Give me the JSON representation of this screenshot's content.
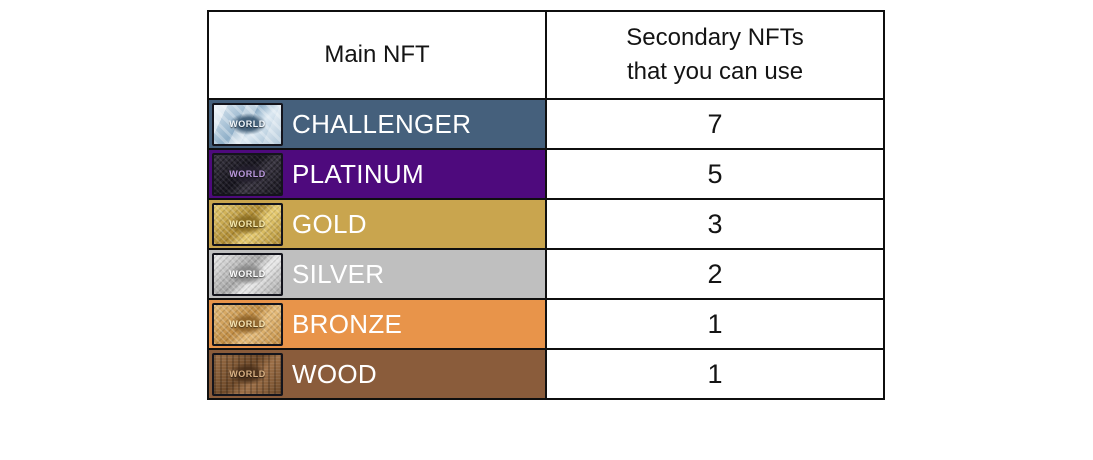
{
  "table": {
    "border_color": "#0f0f0f",
    "header": {
      "col1": "Main NFT",
      "col2_line1": "Secondary NFTs",
      "col2_line2": "that you can use"
    },
    "rows": [
      {
        "id": "challenger",
        "label": "CHALLENGER",
        "secondary_count": "7",
        "row_color": "#45607c",
        "label_color": "#ffffff",
        "card_text": "WORLD",
        "thumb_light": "#dde9f2",
        "thumb_dark": "#8fafc8",
        "burst_color": "#2e4d68",
        "card_text_color": "#f2f8fd"
      },
      {
        "id": "platinum",
        "label": "PLATINUM",
        "secondary_count": "5",
        "row_color": "#4e0a7d",
        "label_color": "#ffffff",
        "card_text": "WORLD",
        "thumb_light": "#3c3844",
        "thumb_dark": "#181620",
        "burst_color": "#241f2e",
        "card_text_color": "#bb99dd"
      },
      {
        "id": "gold",
        "label": "GOLD",
        "secondary_count": "3",
        "row_color": "#c9a54e",
        "label_color": "#ffffff",
        "card_text": "WORLD",
        "thumb_light": "#e9ce74",
        "thumb_dark": "#ad8a32",
        "burst_color": "#86691f",
        "card_text_color": "#f7e9ab"
      },
      {
        "id": "silver",
        "label": "SILVER",
        "secondary_count": "2",
        "row_color": "#bfbfbf",
        "label_color": "#ffffff",
        "card_text": "WORLD",
        "thumb_light": "#ececec",
        "thumb_dark": "#a4a4a4",
        "burst_color": "#858585",
        "card_text_color": "#ffffff"
      },
      {
        "id": "bronze",
        "label": "BRONZE",
        "secondary_count": "1",
        "row_color": "#e8944a",
        "label_color": "#ffffff",
        "card_text": "WORLD",
        "thumb_light": "#e6bd7c",
        "thumb_dark": "#bf8b42",
        "burst_color": "#8a5f26",
        "card_text_color": "#f8e4b1"
      },
      {
        "id": "wood",
        "label": "WOOD",
        "secondary_count": "1",
        "row_color": "#8a5c3b",
        "label_color": "#ffffff",
        "card_text": "WORLD",
        "thumb_light": "#9d7048",
        "thumb_dark": "#6d4929",
        "burst_color": "#472d18",
        "card_text_color": "#d9b184"
      }
    ]
  },
  "chart_data": {
    "type": "table",
    "title": "",
    "columns": [
      "Main NFT",
      "Secondary NFTs that you can use"
    ],
    "rows": [
      [
        "CHALLENGER",
        7
      ],
      [
        "PLATINUM",
        5
      ],
      [
        "GOLD",
        3
      ],
      [
        "SILVER",
        2
      ],
      [
        "BRONZE",
        1
      ],
      [
        "WOOD",
        1
      ]
    ]
  }
}
